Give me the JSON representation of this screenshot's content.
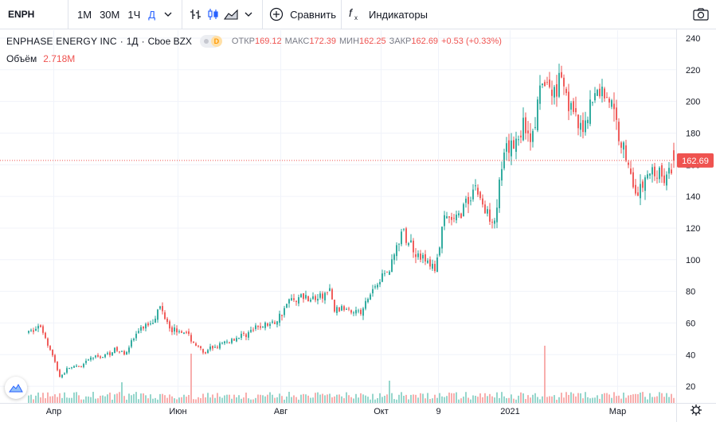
{
  "toolbar": {
    "symbol": "ENPH",
    "intervals": [
      "1М",
      "30М",
      "1Ч",
      "Д"
    ],
    "active_interval": "Д",
    "compare_label": "Сравнить",
    "indicators_label": "Индикаторы"
  },
  "legend": {
    "name": "ENPHASE ENERGY INC",
    "interval": "1Д",
    "exchange": "Cboe BZX",
    "badge": "D",
    "open_label": "ОТКР",
    "open": "169.12",
    "high_label": "МАКС",
    "high": "172.39",
    "low_label": "МИН",
    "low": "162.25",
    "close_label": "ЗАКР",
    "close": "162.69",
    "change": "+0.53 (+0.33%)"
  },
  "volume": {
    "label": "Объём",
    "value": "2.718M"
  },
  "colors": {
    "up": "#26a69a",
    "down": "#ef5350",
    "up_volume": "#8ed3c8",
    "down_volume": "#f7a9a7",
    "grid": "#f0f3fa",
    "price_line": "#ef5350",
    "accent": "#2962ff"
  },
  "chart_data": {
    "type": "candlestick",
    "y_ticks": [
      20,
      40,
      60,
      80,
      100,
      120,
      140,
      160,
      180,
      200,
      220,
      240
    ],
    "ylim": [
      9.5,
      245
    ],
    "x_labels": [
      "Апр",
      "Июн",
      "Авг",
      "Окт",
      "9",
      "2021",
      "Мар"
    ],
    "x_label_positions": [
      10.5,
      62.5,
      105.5,
      147.5,
      171.5,
      201.5,
      246.5
    ],
    "x_range": [
      -12,
      271
    ],
    "current_price": 162.69,
    "current_price_label": "162.69",
    "anchors": [
      [
        0,
        54
      ],
      [
        5,
        58
      ],
      [
        9,
        44
      ],
      [
        13,
        26
      ],
      [
        17,
        32
      ],
      [
        22,
        32
      ],
      [
        26,
        38
      ],
      [
        31,
        39
      ],
      [
        36,
        43
      ],
      [
        40,
        41
      ],
      [
        46,
        55
      ],
      [
        52,
        62
      ],
      [
        55,
        70
      ],
      [
        60,
        56
      ],
      [
        65,
        55
      ],
      [
        70,
        46
      ],
      [
        74,
        40
      ],
      [
        76,
        44
      ],
      [
        80,
        46
      ],
      [
        86,
        50
      ],
      [
        92,
        54
      ],
      [
        97,
        58
      ],
      [
        103,
        60
      ],
      [
        109,
        74
      ],
      [
        115,
        77
      ],
      [
        120,
        75
      ],
      [
        126,
        80
      ],
      [
        128,
        68
      ],
      [
        134,
        70
      ],
      [
        139,
        66
      ],
      [
        145,
        84
      ],
      [
        151,
        95
      ],
      [
        156,
        117
      ],
      [
        160,
        110
      ],
      [
        165,
        100
      ],
      [
        170,
        94
      ],
      [
        174,
        125
      ],
      [
        179,
        125
      ],
      [
        183,
        136
      ],
      [
        187,
        147
      ],
      [
        191,
        130
      ],
      [
        195,
        127
      ],
      [
        199,
        165
      ],
      [
        203,
        173
      ],
      [
        207,
        185
      ],
      [
        211,
        178
      ],
      [
        215,
        212
      ],
      [
        219,
        205
      ],
      [
        223,
        218
      ],
      [
        227,
        195
      ],
      [
        231,
        180
      ],
      [
        235,
        198
      ],
      [
        239,
        208
      ],
      [
        243,
        202
      ],
      [
        247,
        180
      ],
      [
        251,
        160
      ],
      [
        255,
        140
      ],
      [
        259,
        154
      ],
      [
        263,
        155
      ],
      [
        267,
        150
      ],
      [
        270,
        162.69
      ]
    ]
  }
}
